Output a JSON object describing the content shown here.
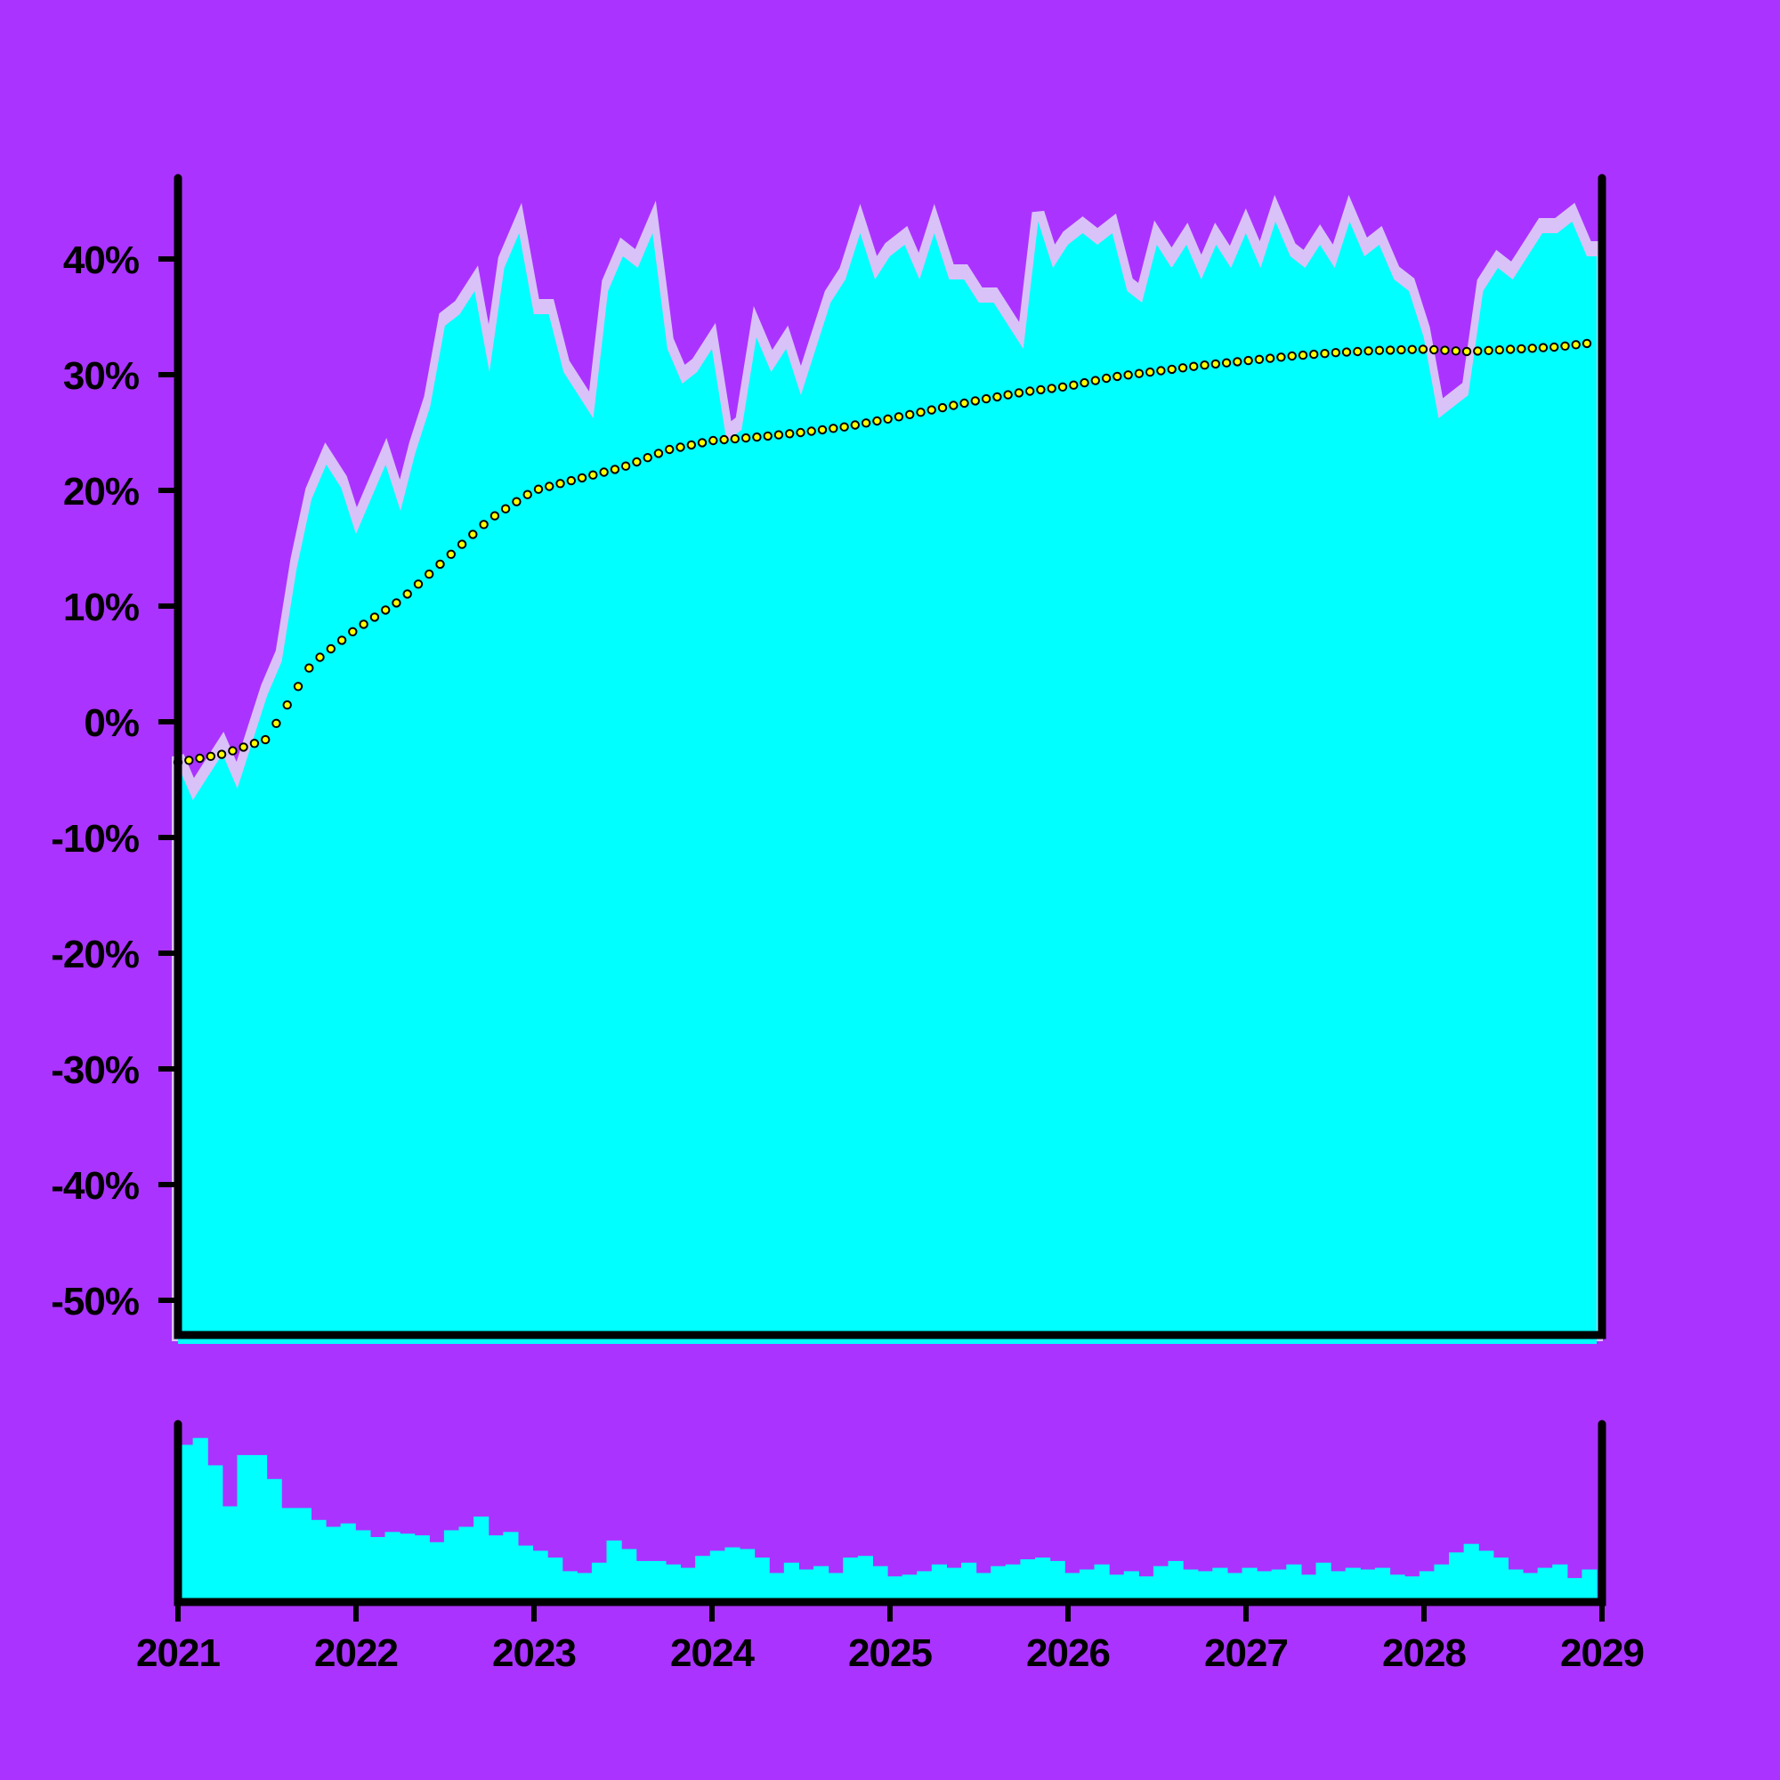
{
  "chart_data": [
    {
      "type": "area",
      "panel": "main",
      "title": "",
      "xlabel": "",
      "ylabel": "",
      "x_range": [
        "2021-01-01",
        "2028-12-31"
      ],
      "ylim": [
        -53,
        47
      ],
      "y_ticks": [
        {
          "value": 40,
          "label": "40%"
        },
        {
          "value": 30,
          "label": "30%"
        },
        {
          "value": 20,
          "label": "20%"
        },
        {
          "value": 10,
          "label": "10%"
        },
        {
          "value": 0,
          "label": "0%"
        },
        {
          "value": -10,
          "label": "-10%"
        },
        {
          "value": -20,
          "label": "-20%"
        },
        {
          "value": -30,
          "label": "-30%"
        },
        {
          "value": -40,
          "label": "-40%"
        },
        {
          "value": -50,
          "label": "-50%"
        }
      ],
      "grid": false,
      "series": [
        {
          "role": "filled area",
          "x": [
            "2021-01",
            "2021-02",
            "2021-03",
            "2021-04",
            "2021-05",
            "2021-06",
            "2021-07",
            "2021-08",
            "2021-09",
            "2021-10",
            "2021-11",
            "2021-12",
            "2022-01",
            "2022-02",
            "2022-03",
            "2022-04",
            "2022-05",
            "2022-06",
            "2022-07",
            "2022-08",
            "2022-09",
            "2022-10",
            "2022-11",
            "2022-12",
            "2023-01",
            "2023-02",
            "2023-03",
            "2023-04",
            "2023-05",
            "2023-06",
            "2023-07",
            "2023-08",
            "2023-09",
            "2023-10",
            "2023-11",
            "2023-12",
            "2024-01",
            "2024-02",
            "2024-03",
            "2024-04",
            "2024-05",
            "2024-06",
            "2024-07",
            "2024-08",
            "2024-09",
            "2024-10",
            "2024-11",
            "2024-12",
            "2025-01",
            "2025-02",
            "2025-03",
            "2025-04",
            "2025-05",
            "2025-06",
            "2025-07",
            "2025-08",
            "2025-09",
            "2025-10",
            "2025-11",
            "2025-12",
            "2026-01",
            "2026-02",
            "2026-03",
            "2026-04",
            "2026-05",
            "2026-06",
            "2026-07",
            "2026-08",
            "2026-09",
            "2026-10",
            "2026-11",
            "2026-12",
            "2027-01",
            "2027-02",
            "2027-03",
            "2027-04",
            "2027-05",
            "2027-06",
            "2027-07",
            "2027-08",
            "2027-09",
            "2027-10",
            "2027-11",
            "2027-12",
            "2028-01",
            "2028-02",
            "2028-03",
            "2028-04",
            "2028-05",
            "2028-06",
            "2028-07",
            "2028-08",
            "2028-09",
            "2028-10",
            "2028-11",
            "2028-12"
          ],
          "values": [
            -3,
            -6,
            -4,
            -2,
            -5,
            -1,
            3,
            6,
            14,
            20,
            23,
            21,
            17,
            20,
            23,
            19,
            24,
            28,
            35,
            36,
            38,
            31,
            40,
            43,
            36,
            36,
            31,
            29,
            27,
            38,
            41,
            40,
            43,
            33,
            30,
            31,
            33,
            25,
            26,
            34,
            31,
            33,
            29,
            33,
            37,
            39,
            43,
            39,
            41,
            42,
            39,
            43,
            39,
            39,
            37,
            37,
            35,
            33,
            44,
            40,
            42,
            43,
            42,
            43,
            38,
            37,
            42,
            40,
            42,
            39,
            42,
            40,
            43,
            40,
            44,
            41,
            40,
            42,
            40,
            44,
            41,
            42,
            39,
            38,
            34,
            27,
            28,
            29,
            38,
            40,
            39,
            41,
            43,
            43,
            44,
            41
          ]
        },
        {
          "role": "dotted trend line",
          "x": [
            "2021-01",
            "2021-04",
            "2021-07",
            "2021-10",
            "2022-01",
            "2022-04",
            "2022-07",
            "2022-10",
            "2023-01",
            "2023-04",
            "2023-07",
            "2023-10",
            "2024-01",
            "2024-04",
            "2024-07",
            "2024-10",
            "2025-01",
            "2025-04",
            "2025-07",
            "2025-10",
            "2026-01",
            "2026-04",
            "2026-07",
            "2026-10",
            "2027-01",
            "2027-04",
            "2027-07",
            "2027-10",
            "2028-01",
            "2028-04",
            "2028-07",
            "2028-10",
            "2028-12"
          ],
          "values": [
            -3.5,
            -2.8,
            -1.5,
            5.0,
            8.0,
            10.5,
            14.0,
            17.5,
            20.0,
            21.0,
            22.0,
            23.5,
            24.3,
            24.6,
            25.0,
            25.5,
            26.2,
            27.0,
            27.8,
            28.5,
            29.0,
            29.8,
            30.3,
            30.8,
            31.2,
            31.6,
            31.9,
            32.1,
            32.2,
            32.0,
            32.2,
            32.4,
            32.7
          ]
        }
      ],
      "colors": {
        "background": "#ab33ff",
        "fill": "#00ffff",
        "band": "#d9c2f7",
        "trend_fill": "#ffff00",
        "trend_edge": "#000000",
        "axis": "#000000"
      }
    },
    {
      "type": "bar",
      "panel": "bottom",
      "title": "",
      "xlabel": "",
      "ylabel": "",
      "x_ticks": [
        "2021",
        "2022",
        "2023",
        "2024",
        "2025",
        "2026",
        "2027",
        "2028",
        "2029"
      ],
      "ylim": [
        0,
        1
      ],
      "values": [
        0.92,
        0.96,
        0.8,
        0.56,
        0.86,
        0.86,
        0.72,
        0.55,
        0.55,
        0.48,
        0.44,
        0.46,
        0.42,
        0.38,
        0.41,
        0.4,
        0.39,
        0.35,
        0.42,
        0.44,
        0.5,
        0.39,
        0.41,
        0.33,
        0.3,
        0.26,
        0.18,
        0.17,
        0.23,
        0.36,
        0.31,
        0.24,
        0.24,
        0.22,
        0.2,
        0.27,
        0.3,
        0.32,
        0.31,
        0.26,
        0.17,
        0.23,
        0.19,
        0.21,
        0.17,
        0.26,
        0.27,
        0.21,
        0.15,
        0.16,
        0.18,
        0.22,
        0.2,
        0.23,
        0.17,
        0.21,
        0.22,
        0.25,
        0.26,
        0.24,
        0.17,
        0.19,
        0.22,
        0.16,
        0.18,
        0.15,
        0.21,
        0.24,
        0.19,
        0.18,
        0.2,
        0.17,
        0.2,
        0.18,
        0.19,
        0.22,
        0.16,
        0.23,
        0.18,
        0.2,
        0.19,
        0.2,
        0.16,
        0.15,
        0.18,
        0.22,
        0.29,
        0.34,
        0.3,
        0.26,
        0.19,
        0.17,
        0.2,
        0.22,
        0.14,
        0.19
      ],
      "colors": {
        "bars": "#00ffff"
      }
    }
  ]
}
